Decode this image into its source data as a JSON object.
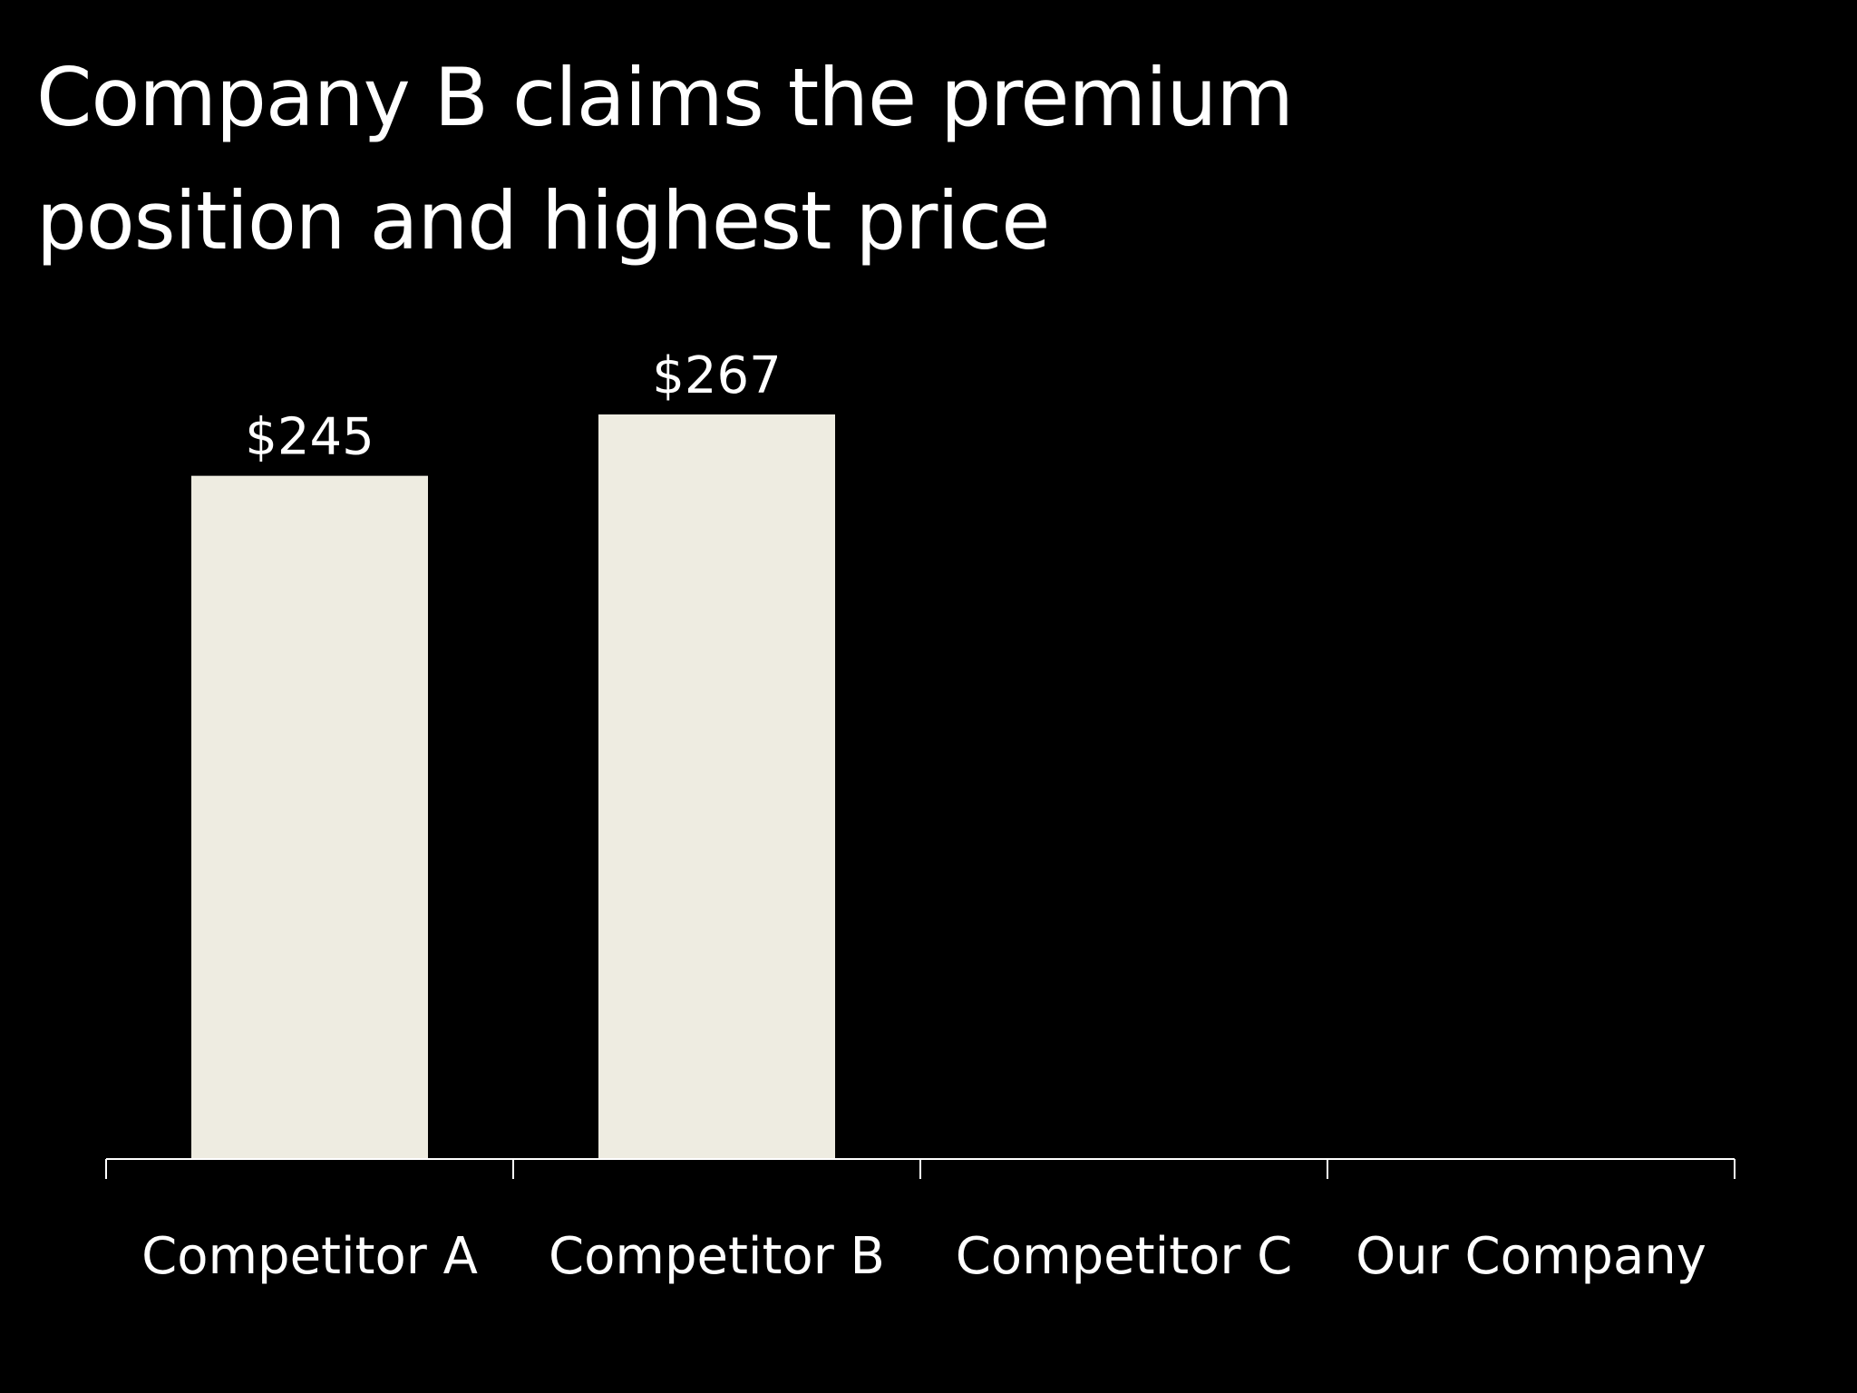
{
  "slide": {
    "title": "Company B claims the premium position and highest price"
  },
  "chart_data": {
    "type": "bar",
    "title": "",
    "xlabel": "",
    "ylabel": "",
    "categories": [
      "Competitor A",
      "Competitor B",
      "Competitor C",
      "Our Company"
    ],
    "values": [
      245,
      267,
      null,
      null
    ],
    "value_labels": [
      "$245",
      "$267",
      "",
      ""
    ],
    "ylim": [
      0,
      267
    ],
    "grid": false,
    "legend": "none",
    "colors": {
      "background": "#000000",
      "bar": "#EEECE1",
      "text": "#FFFFFF",
      "axis": "#FFFFFF"
    }
  }
}
